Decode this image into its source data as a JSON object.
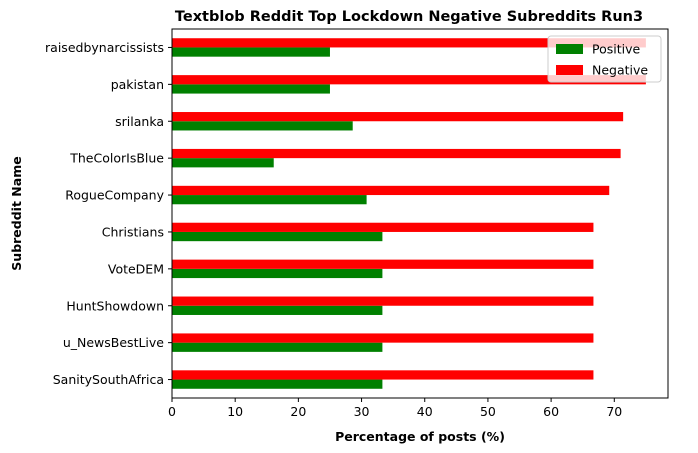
{
  "chart_data": {
    "type": "bar",
    "orientation": "horizontal",
    "title": "Textblob Reddit Top Lockdown Negative Subreddits Run3",
    "xlabel": "Percentage of posts (%)",
    "ylabel": "Subreddit Name",
    "xlim": [
      0,
      78.5
    ],
    "xticks": [
      0,
      10,
      20,
      30,
      40,
      50,
      60,
      70
    ],
    "grid": false,
    "legend_position": "top-right",
    "categories": [
      "raisedbynarcissists",
      "pakistan",
      "srilanka",
      "TheColorIsBlue",
      "RogueCompany",
      "Christians",
      "VoteDEM",
      "HuntShowdown",
      "u_NewsBestLive",
      "SanitySouthAfrica"
    ],
    "series": [
      {
        "name": "Positive",
        "color": "#008000",
        "values": [
          25.0,
          25.0,
          28.6,
          16.1,
          30.8,
          33.3,
          33.3,
          33.3,
          33.3,
          33.3
        ]
      },
      {
        "name": "Negative",
        "color": "#ff0000",
        "values": [
          75.0,
          75.0,
          71.4,
          71.0,
          69.2,
          66.7,
          66.7,
          66.7,
          66.7,
          66.7
        ]
      }
    ]
  }
}
